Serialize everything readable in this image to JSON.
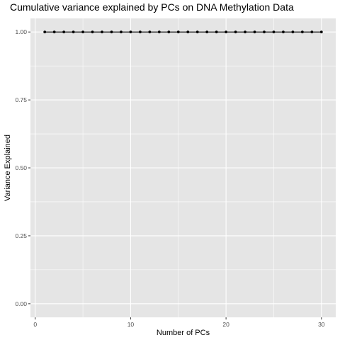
{
  "chart_data": {
    "type": "line",
    "title": "Cumulative variance explained by PCs on DNA Methylation Data",
    "xlabel": "Number of PCs",
    "ylabel": "Variance Explained",
    "xlim": [
      -0.5,
      31.5
    ],
    "ylim": [
      -0.05,
      1.05
    ],
    "x_ticks": [
      0,
      10,
      20,
      30
    ],
    "x_tick_labels": [
      "0",
      "10",
      "20",
      "30"
    ],
    "y_ticks": [
      0,
      0.25,
      0.5,
      0.75,
      1.0
    ],
    "y_tick_labels": [
      "0.00",
      "0.25",
      "0.50",
      "0.75",
      "1.00"
    ],
    "grid": true,
    "legend": "none",
    "colors": {
      "panel": "#e5e5e5",
      "grid": "#ffffff",
      "line": "#000000",
      "tick_text": "#4d4d4d",
      "tick_mark": "#333333"
    },
    "x": [
      1,
      2,
      3,
      4,
      5,
      6,
      7,
      8,
      9,
      10,
      11,
      12,
      13,
      14,
      15,
      16,
      17,
      18,
      19,
      20,
      21,
      22,
      23,
      24,
      25,
      26,
      27,
      28,
      29,
      30
    ],
    "y": [
      1,
      1,
      1,
      1,
      1,
      1,
      1,
      1,
      1,
      1,
      1,
      1,
      1,
      1,
      1,
      1,
      1,
      1,
      1,
      1,
      1,
      1,
      1,
      1,
      1,
      1,
      1,
      1,
      1,
      1
    ]
  }
}
